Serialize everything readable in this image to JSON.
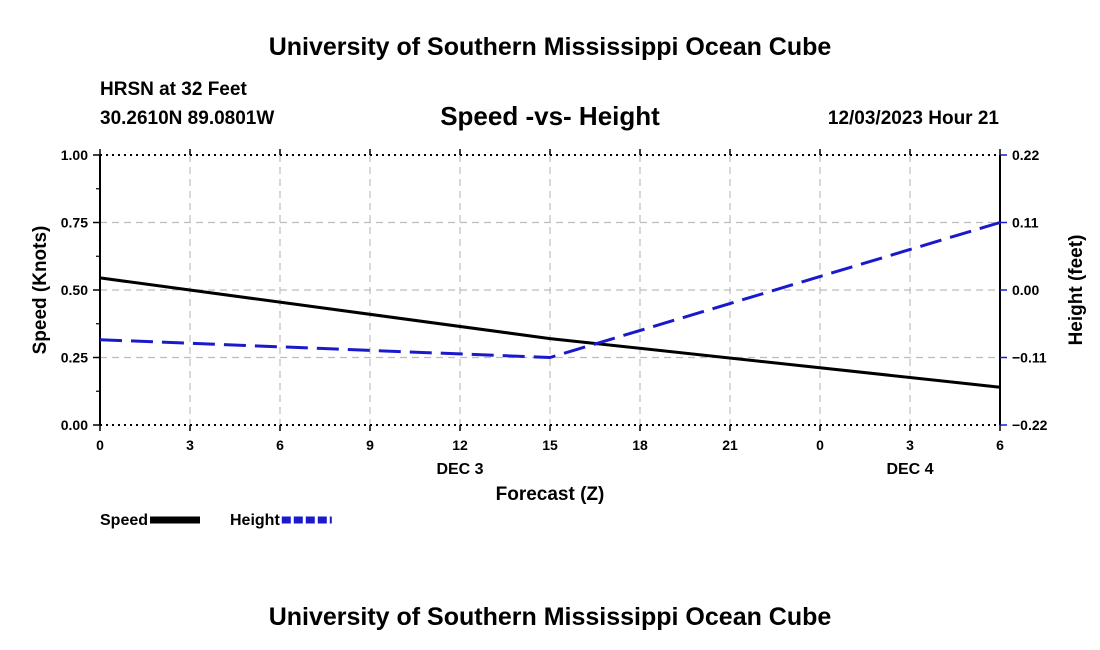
{
  "header": {
    "title": "University of Southern Mississippi Ocean Cube",
    "station": "HRSN at 32 Feet",
    "coords": "30.2610N  89.0801W",
    "plot_title": "Speed -vs- Height",
    "timestamp": "12/03/2023 Hour 21"
  },
  "footer": {
    "title": "University of Southern Mississippi Ocean Cube"
  },
  "chart_data": {
    "type": "line",
    "title": "Speed -vs- Height",
    "xlabel": "Forecast (Z)",
    "ylabel": "Speed (Knots)",
    "y2label": "Height (feet)",
    "x": [
      0,
      3,
      6,
      9,
      12,
      15,
      18,
      21,
      24,
      27,
      30
    ],
    "xlim": [
      0,
      30
    ],
    "x_tick_labels": [
      "0",
      "3",
      "6",
      "9",
      "12",
      "15",
      "18",
      "21",
      "0",
      "3",
      "6"
    ],
    "date_labels": [
      {
        "x": 12,
        "label": "DEC 3"
      },
      {
        "x": 27,
        "label": "DEC 4"
      }
    ],
    "ylim": [
      0,
      1
    ],
    "y_ticks": [
      0,
      0.25,
      0.5,
      0.75,
      1.0
    ],
    "y_tick_labels": [
      "0.00",
      "0.25",
      "0.50",
      "0.75",
      "1.00"
    ],
    "y2lim": [
      -0.22,
      0.22
    ],
    "y2_ticks": [
      -0.22,
      -0.11,
      0.0,
      0.11,
      0.22
    ],
    "y2_tick_labels": [
      "−0.22",
      "−0.11",
      "0.00",
      "0.11",
      "0.22"
    ],
    "grid": true,
    "series": [
      {
        "name": "Speed",
        "axis": "left",
        "color": "#000000",
        "dash": "solid",
        "points": [
          [
            0,
            0.545
          ],
          [
            15,
            0.32
          ],
          [
            30,
            0.14
          ]
        ]
      },
      {
        "name": "Height",
        "axis": "right",
        "color": "#1a1acc",
        "dash": "dashed",
        "points": [
          [
            0,
            -0.081
          ],
          [
            15,
            -0.11
          ],
          [
            30,
            0.11
          ]
        ]
      }
    ],
    "legend": [
      {
        "label": "Speed",
        "color": "#000000",
        "dash": "solid"
      },
      {
        "label": "Height",
        "color": "#1a1acc",
        "dash": "dashed"
      }
    ],
    "legend_position": "bottom-left"
  }
}
